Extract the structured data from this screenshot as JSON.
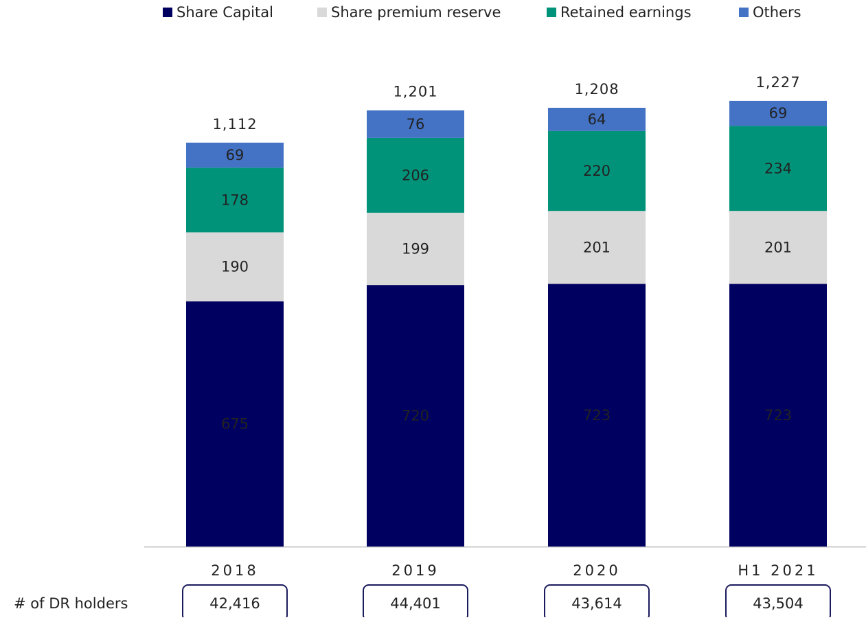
{
  "chart_data": {
    "type": "stacked_bar",
    "categories": [
      "2018",
      "2019",
      "2020",
      "H1 2021"
    ],
    "series": [
      {
        "name": "Share Capital",
        "color": "#000060",
        "values": [
          675,
          720,
          723,
          723
        ]
      },
      {
        "name": "Share premium reserve",
        "color": "#d9d9d9",
        "values": [
          190,
          199,
          201,
          201
        ]
      },
      {
        "name": "Retained earnings",
        "color": "#00937a",
        "values": [
          178,
          206,
          220,
          234
        ]
      },
      {
        "name": "Others",
        "color": "#4472c4",
        "values": [
          69,
          76,
          64,
          69
        ]
      }
    ],
    "totals": {
      "values": [
        1112,
        1201,
        1208,
        1227
      ],
      "value_labels": [
        "1,112",
        "1,201",
        "1,208",
        "1,227"
      ]
    },
    "legend": "top",
    "dr_holders": {
      "label": "# of DR holders",
      "values": [
        "42,416",
        "44,401",
        "43,614",
        "43,504"
      ]
    }
  }
}
